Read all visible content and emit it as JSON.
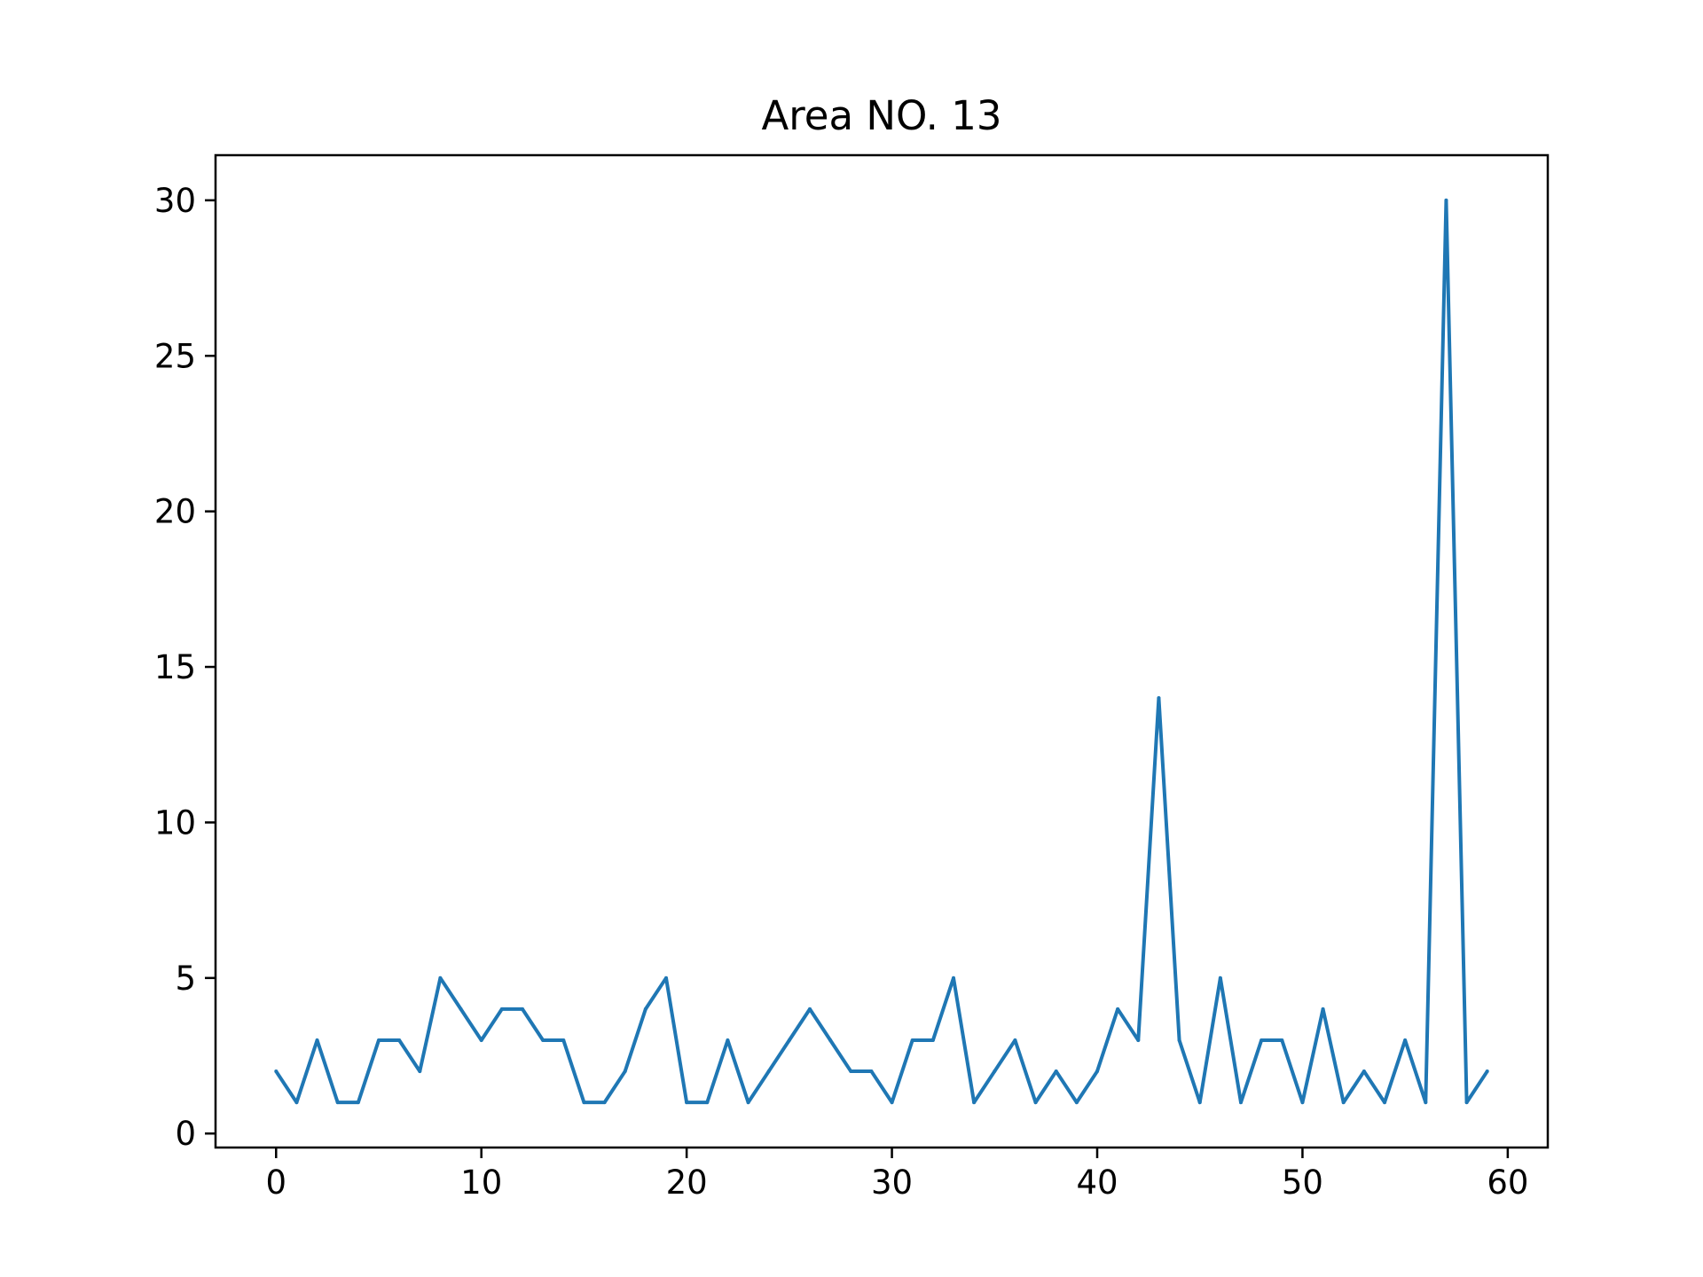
{
  "chart_data": {
    "type": "line",
    "title": "Area NO. 13",
    "xlabel": "",
    "ylabel": "",
    "xlim": [
      -2.95,
      61.95
    ],
    "ylim": [
      -0.45,
      31.45
    ],
    "xticks": [
      0,
      10,
      20,
      30,
      40,
      50,
      60
    ],
    "yticks": [
      0,
      5,
      10,
      15,
      20,
      25,
      30
    ],
    "grid": false,
    "legend": "none",
    "series": [
      {
        "color": "#1f77b4",
        "x": [
          0,
          1,
          2,
          3,
          4,
          5,
          6,
          7,
          8,
          9,
          10,
          11,
          12,
          13,
          14,
          15,
          16,
          17,
          18,
          19,
          20,
          21,
          22,
          23,
          24,
          25,
          26,
          27,
          28,
          29,
          30,
          31,
          32,
          33,
          34,
          35,
          36,
          37,
          38,
          39,
          40,
          41,
          42,
          43,
          44,
          45,
          46,
          47,
          48,
          49,
          50,
          51,
          52,
          53,
          54,
          55,
          56,
          57,
          58,
          59
        ],
        "values": [
          2,
          1,
          3,
          1,
          1,
          3,
          3,
          2,
          5,
          4,
          3,
          4,
          4,
          3,
          3,
          1,
          1,
          2,
          4,
          5,
          1,
          1,
          3,
          1,
          2,
          3,
          4,
          3,
          2,
          2,
          1,
          3,
          3,
          5,
          1,
          2,
          3,
          1,
          2,
          1,
          2,
          4,
          3,
          14,
          3,
          1,
          5,
          1,
          3,
          3,
          1,
          4,
          1,
          2,
          1,
          3,
          1,
          30,
          1,
          2
        ]
      }
    ]
  }
}
